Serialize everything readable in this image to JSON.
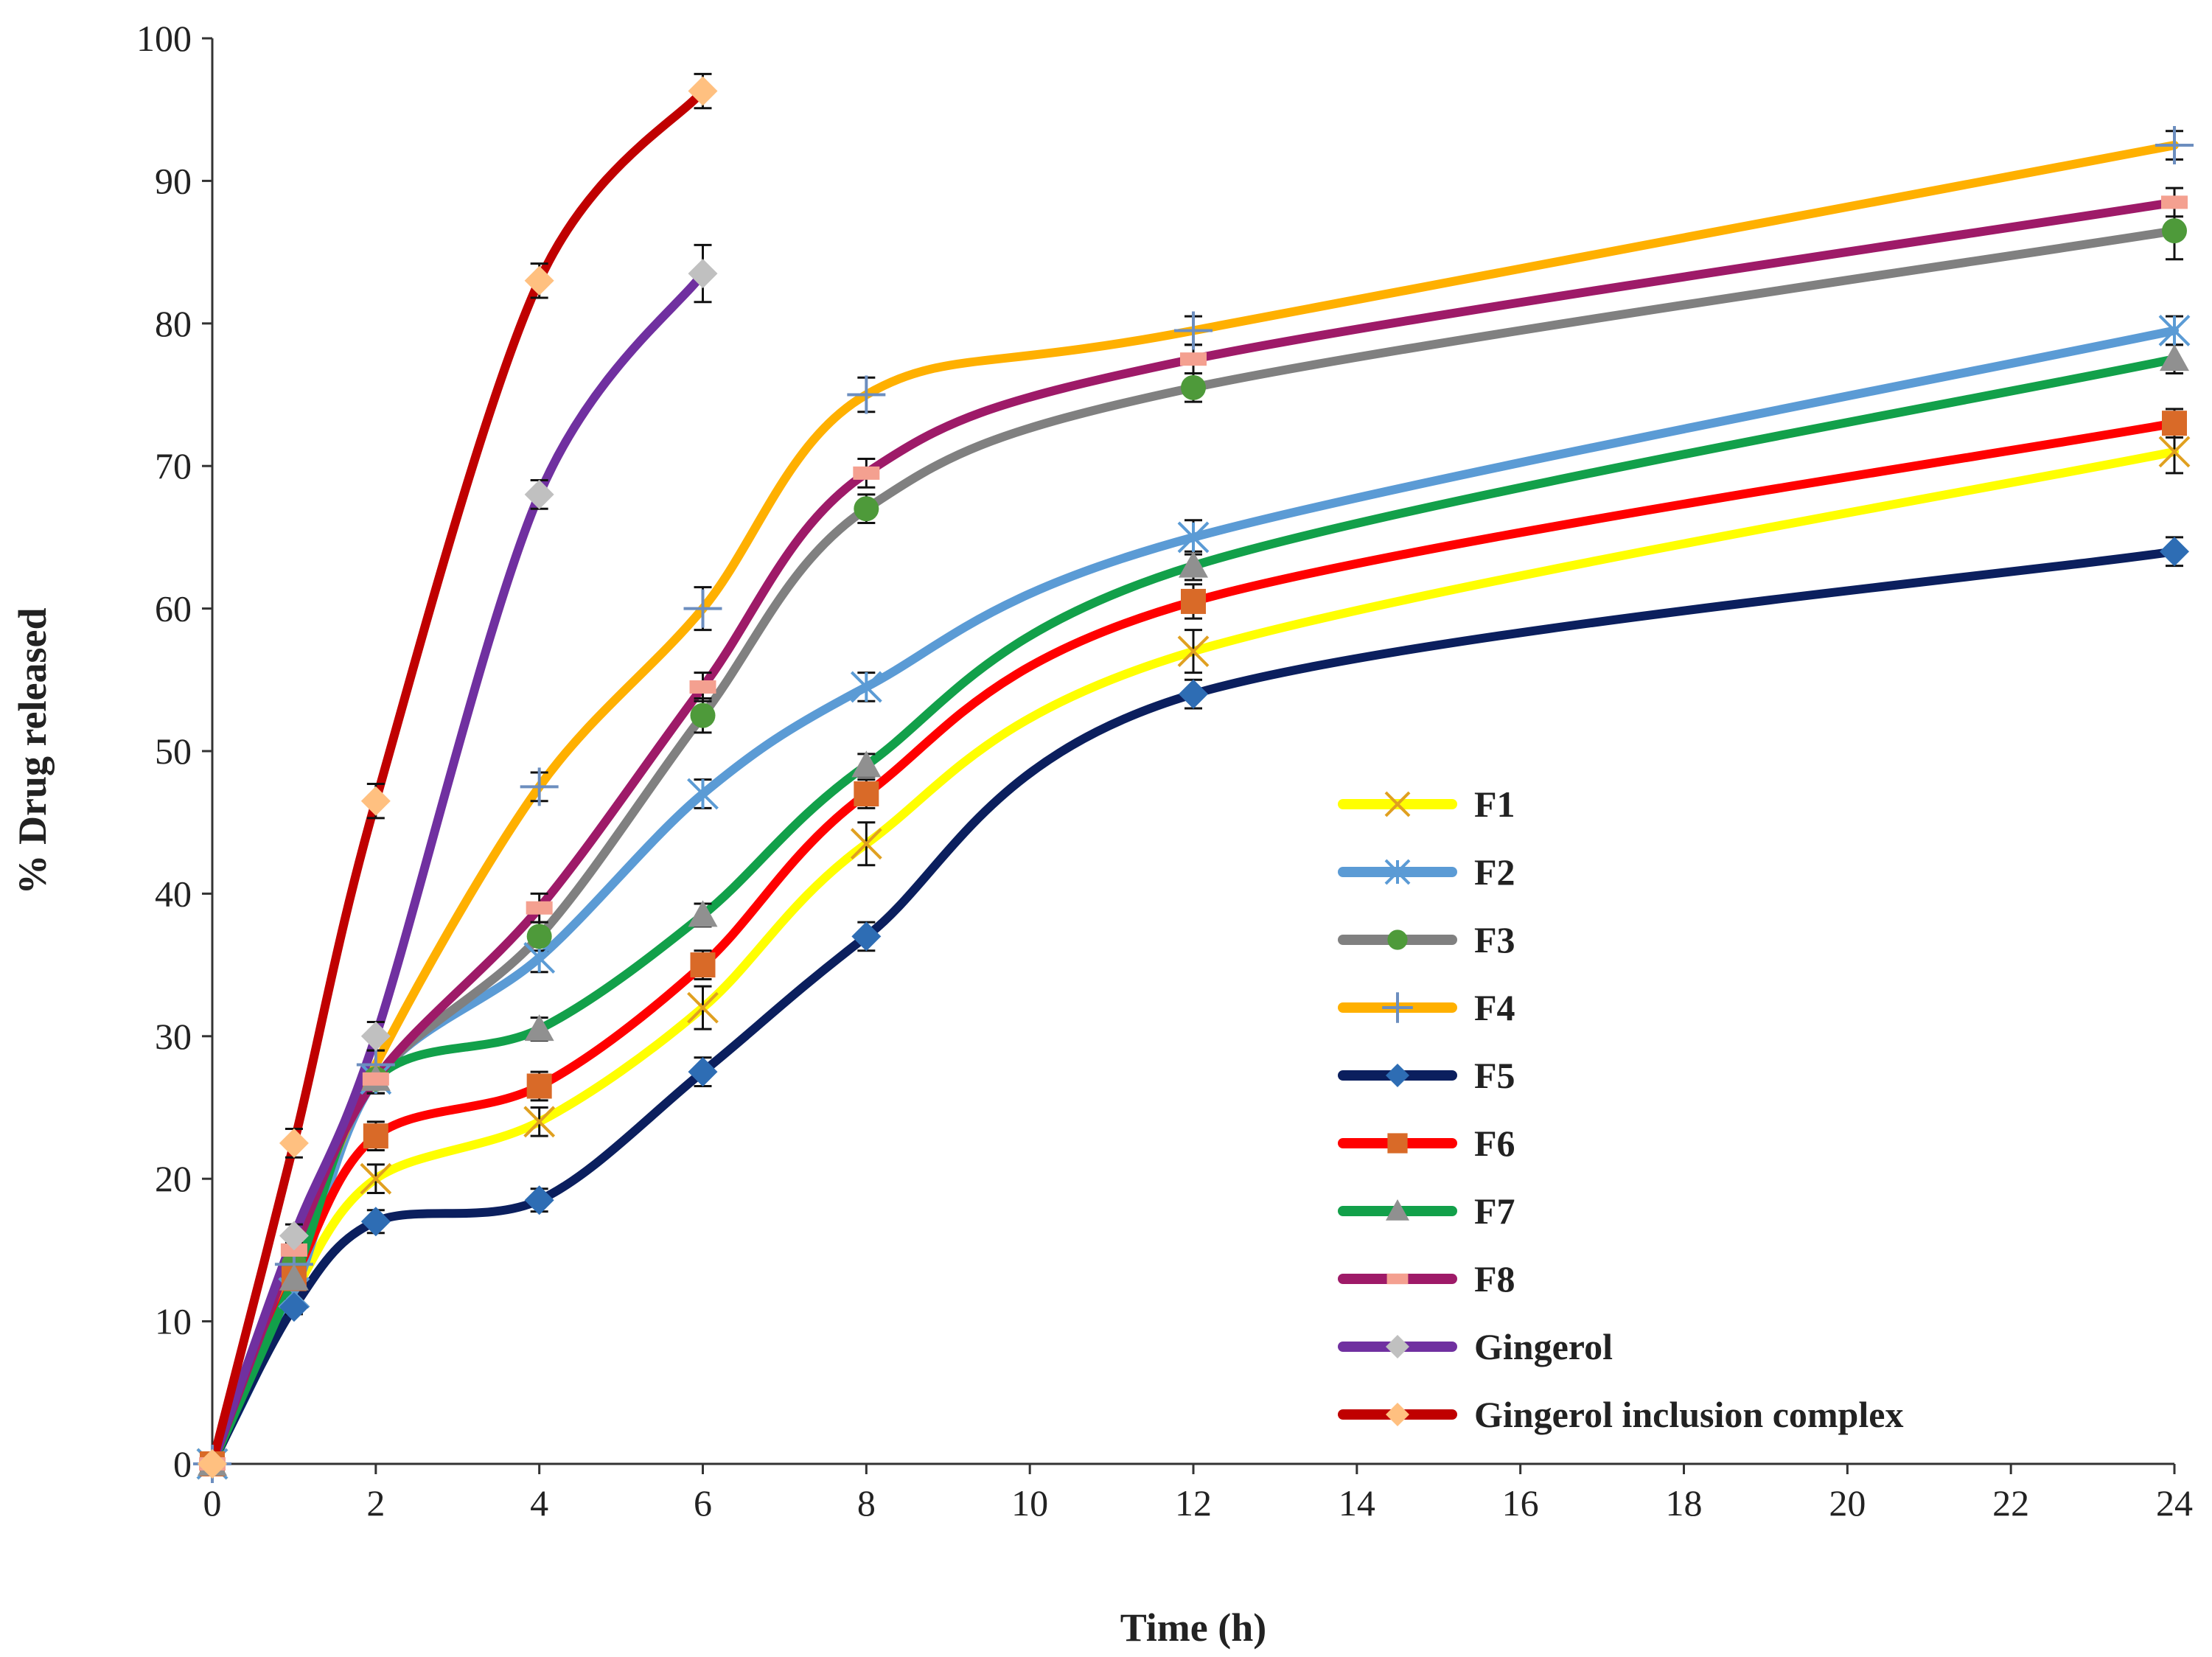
{
  "chart_data": {
    "type": "line",
    "title": "",
    "xlabel": "Time (h)",
    "ylabel": "% Drug released",
    "xlim": [
      0,
      24
    ],
    "ylim": [
      0,
      100
    ],
    "xticks": [
      0,
      2,
      4,
      6,
      8,
      10,
      12,
      14,
      16,
      18,
      20,
      22,
      24
    ],
    "yticks": [
      0,
      10,
      20,
      30,
      40,
      50,
      60,
      70,
      80,
      90,
      100
    ],
    "grid": false,
    "legend_position": "bottom-right",
    "series": [
      {
        "name": "F1",
        "color": "#FFFF00",
        "marker": "x",
        "marker_color": "#E0A020",
        "x": [
          0,
          1,
          2,
          4,
          6,
          8,
          12,
          24
        ],
        "y": [
          0,
          12,
          20,
          24,
          32,
          43.5,
          57,
          71
        ],
        "err": [
          0,
          0.5,
          1,
          1,
          1.5,
          1.5,
          1.5,
          1.5
        ]
      },
      {
        "name": "F2",
        "color": "#5B9BD5",
        "marker": "asterisk",
        "marker_color": "#5B9BD5",
        "x": [
          0,
          1,
          2,
          4,
          6,
          8,
          12,
          24
        ],
        "y": [
          0,
          12,
          27,
          35.5,
          47,
          54.5,
          65,
          79.5
        ],
        "err": [
          0,
          0.5,
          1,
          1,
          1,
          1,
          1.2,
          1
        ]
      },
      {
        "name": "F3",
        "color": "#808080",
        "marker": "circle",
        "marker_color": "#4E9A3A",
        "x": [
          0,
          1,
          2,
          4,
          6,
          8,
          12,
          24
        ],
        "y": [
          0,
          14,
          27,
          37,
          52.5,
          67,
          75.5,
          86.5
        ],
        "err": [
          0,
          0.5,
          1,
          1,
          1.2,
          1,
          1,
          2
        ]
      },
      {
        "name": "F4",
        "color": "#FFB000",
        "marker": "plus",
        "marker_color": "#6C8EBF",
        "x": [
          0,
          1,
          2,
          4,
          6,
          8,
          12,
          24
        ],
        "y": [
          0,
          14,
          28,
          47.5,
          60,
          75,
          79.5,
          92.5
        ],
        "err": [
          0,
          0.5,
          1,
          1,
          1.5,
          1.2,
          1,
          1
        ]
      },
      {
        "name": "F5",
        "color": "#0B1F5E",
        "marker": "diamond",
        "marker_color": "#2E6DB4",
        "x": [
          0,
          1,
          2,
          4,
          6,
          8,
          12,
          24
        ],
        "y": [
          0,
          11,
          17,
          18.5,
          27.5,
          37,
          54,
          64
        ],
        "err": [
          0,
          0.5,
          0.8,
          0.8,
          1,
          1,
          1,
          1
        ]
      },
      {
        "name": "F6",
        "color": "#FF0000",
        "marker": "square",
        "marker_color": "#D96A28",
        "x": [
          0,
          1,
          2,
          4,
          6,
          8,
          12,
          24
        ],
        "y": [
          0,
          13,
          23,
          26.5,
          35,
          47,
          60.5,
          73
        ],
        "err": [
          0,
          0.5,
          1,
          1,
          1,
          1,
          1.2,
          1
        ]
      },
      {
        "name": "F7",
        "color": "#12A04A",
        "marker": "triangle",
        "marker_color": "#909090",
        "x": [
          0,
          1,
          2,
          4,
          6,
          8,
          12,
          24
        ],
        "y": [
          0,
          13,
          27,
          30.5,
          38.5,
          49,
          63,
          77.5
        ],
        "err": [
          0,
          0.5,
          1,
          0.8,
          0.8,
          0.8,
          1,
          1
        ]
      },
      {
        "name": "F8",
        "color": "#9E1A68",
        "marker": "dash",
        "marker_color": "#F4A090",
        "x": [
          0,
          1,
          2,
          4,
          6,
          8,
          12,
          24
        ],
        "y": [
          0,
          15,
          27,
          39,
          54.5,
          69.5,
          77.5,
          88.5
        ],
        "err": [
          0,
          0.5,
          1,
          1,
          1,
          1,
          1,
          1
        ]
      },
      {
        "name": "Gingerol",
        "color": "#7030A0",
        "marker": "diamond",
        "marker_color": "#C0C0C0",
        "x": [
          0,
          1,
          2,
          4,
          6
        ],
        "y": [
          0,
          16,
          30,
          68,
          83.5
        ],
        "err": [
          0,
          0.8,
          1,
          1,
          2
        ]
      },
      {
        "name": "Gingerol inclusion complex",
        "color": "#C00000",
        "marker": "diamond",
        "marker_color": "#FFC080",
        "x": [
          0,
          1,
          2,
          4,
          6
        ],
        "y": [
          0,
          22.5,
          46.5,
          83,
          96.3
        ],
        "err": [
          0,
          1,
          1.2,
          1.2,
          1.2
        ]
      }
    ]
  }
}
